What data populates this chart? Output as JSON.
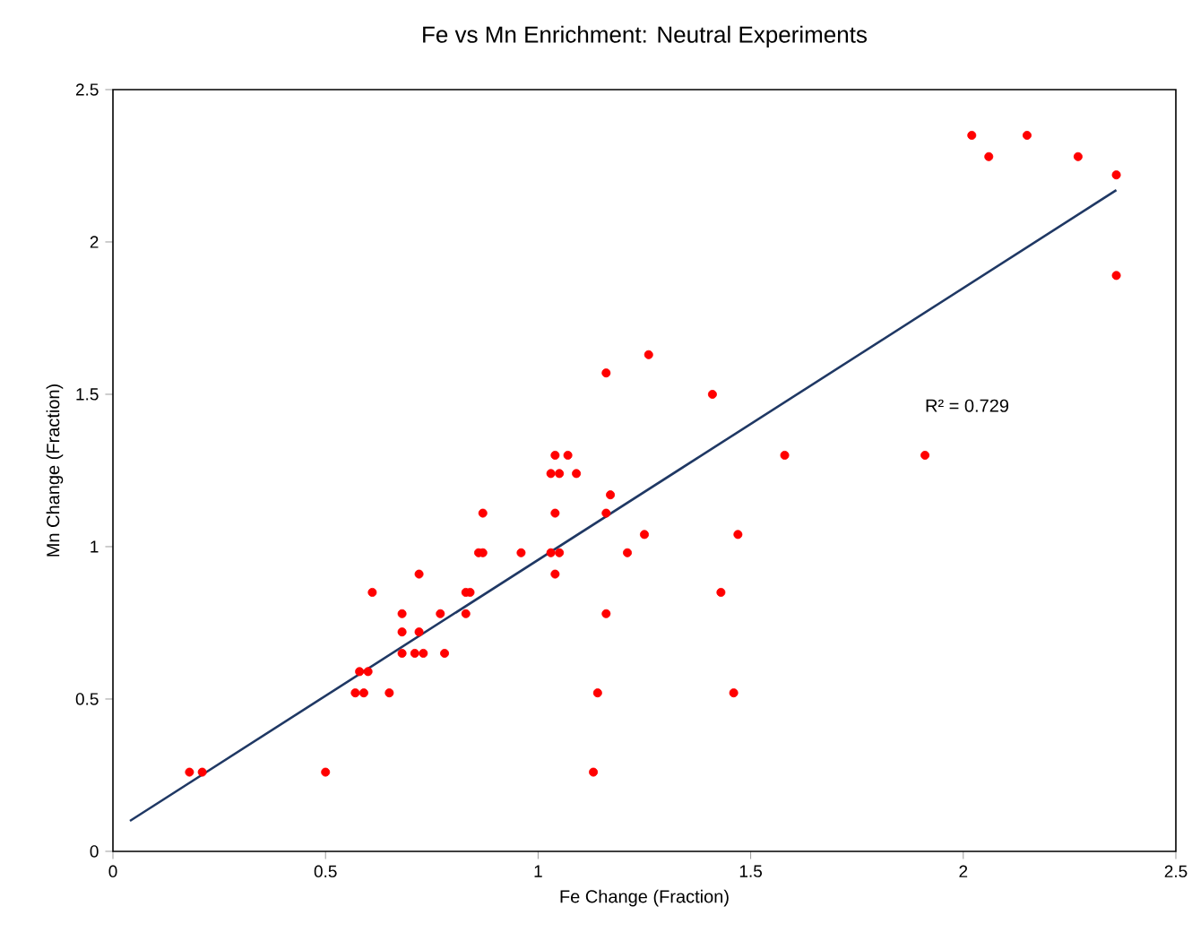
{
  "chart_data": {
    "type": "scatter",
    "title": "Fe vs Mn Enrichment: Neutral Experiments",
    "xlabel": "Fe Change (Fraction)",
    "ylabel": "Mn Change (Fraction)",
    "xlim": [
      0,
      2.5
    ],
    "ylim": [
      0,
      2.5
    ],
    "xticks": [
      0,
      0.5,
      1,
      1.5,
      2,
      2.5
    ],
    "yticks": [
      0,
      0.5,
      1,
      1.5,
      2,
      2.5
    ],
    "grid": false,
    "annotations": [
      "R² = 0.729"
    ],
    "series": [
      {
        "color": "#ff0000",
        "marker": "circle",
        "x": [
          0.18,
          0.21,
          0.5,
          0.57,
          0.59,
          0.65,
          0.58,
          0.6,
          0.61,
          0.68,
          0.71,
          0.73,
          0.78,
          0.68,
          0.72,
          0.68,
          0.77,
          0.83,
          0.72,
          0.83,
          0.84,
          0.86,
          0.87,
          0.87,
          0.96,
          1.03,
          1.05,
          1.04,
          1.04,
          1.03,
          1.05,
          1.09,
          1.04,
          1.07,
          1.16,
          1.26,
          1.17,
          1.16,
          1.16,
          1.21,
          1.25,
          1.14,
          1.13,
          1.41,
          1.43,
          1.47,
          1.46,
          1.58,
          1.91,
          2.02,
          2.06,
          2.15,
          2.27,
          2.36,
          2.36
        ],
        "values": [
          0.26,
          0.26,
          0.26,
          0.52,
          0.52,
          0.52,
          0.59,
          0.59,
          0.85,
          0.65,
          0.65,
          0.65,
          0.65,
          0.72,
          0.72,
          0.78,
          0.78,
          0.78,
          0.91,
          0.85,
          0.85,
          0.98,
          0.98,
          1.11,
          0.98,
          0.98,
          0.98,
          0.91,
          1.11,
          1.24,
          1.24,
          1.24,
          1.3,
          1.3,
          1.57,
          1.63,
          1.17,
          1.11,
          0.78,
          0.98,
          1.04,
          0.52,
          0.26,
          1.5,
          0.85,
          1.04,
          0.52,
          1.3,
          1.3,
          2.35,
          2.28,
          2.35,
          2.28,
          2.22,
          1.89
        ]
      },
      {
        "type": "line",
        "color": "#1f3864",
        "line_style": "solid",
        "marker": "none",
        "x": [
          0.04,
          2.36
        ],
        "values": [
          0.1,
          2.17
        ]
      }
    ]
  }
}
